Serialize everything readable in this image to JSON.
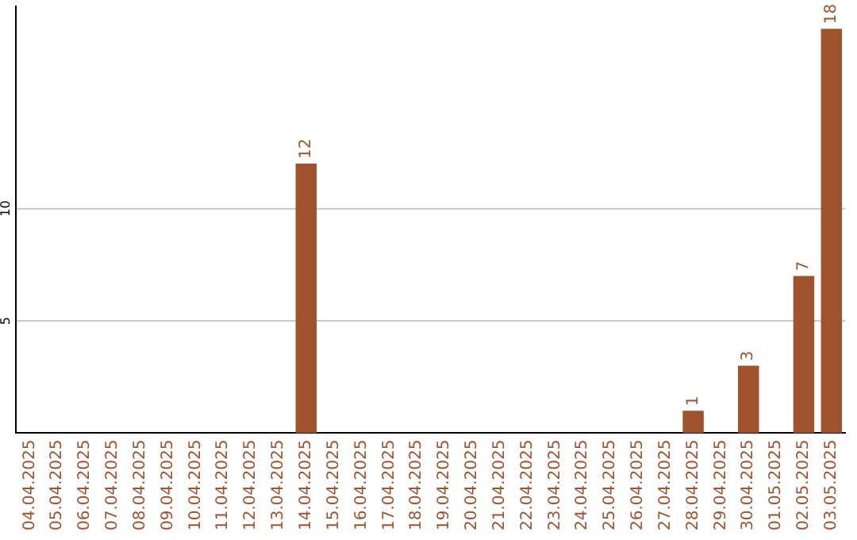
{
  "chart_data": {
    "type": "bar",
    "categories": [
      "04.04.2025",
      "05.04.2025",
      "06.04.2025",
      "07.04.2025",
      "08.04.2025",
      "09.04.2025",
      "10.04.2025",
      "11.04.2025",
      "12.04.2025",
      "13.04.2025",
      "14.04.2025",
      "15.04.2025",
      "16.04.2025",
      "17.04.2025",
      "18.04.2025",
      "19.04.2025",
      "20.04.2025",
      "21.04.2025",
      "22.04.2025",
      "23.04.2025",
      "24.04.2025",
      "25.04.2025",
      "26.04.2025",
      "27.04.2025",
      "28.04.2025",
      "29.04.2025",
      "30.04.2025",
      "01.05.2025",
      "02.05.2025",
      "03.05.2025"
    ],
    "values": [
      0,
      0,
      0,
      0,
      0,
      0,
      0,
      0,
      0,
      0,
      12,
      0,
      0,
      0,
      0,
      0,
      0,
      0,
      0,
      0,
      0,
      0,
      0,
      0,
      1,
      0,
      3,
      0,
      7,
      18
    ],
    "value_labels": [
      null,
      null,
      null,
      null,
      null,
      null,
      null,
      null,
      null,
      null,
      "12",
      null,
      null,
      null,
      null,
      null,
      null,
      null,
      null,
      null,
      null,
      null,
      null,
      null,
      "1",
      null,
      "3",
      null,
      "7",
      "18"
    ],
    "color": "#a0522d",
    "ylim": [
      0,
      19
    ],
    "yticks": [
      5,
      10
    ],
    "grid": "y"
  }
}
